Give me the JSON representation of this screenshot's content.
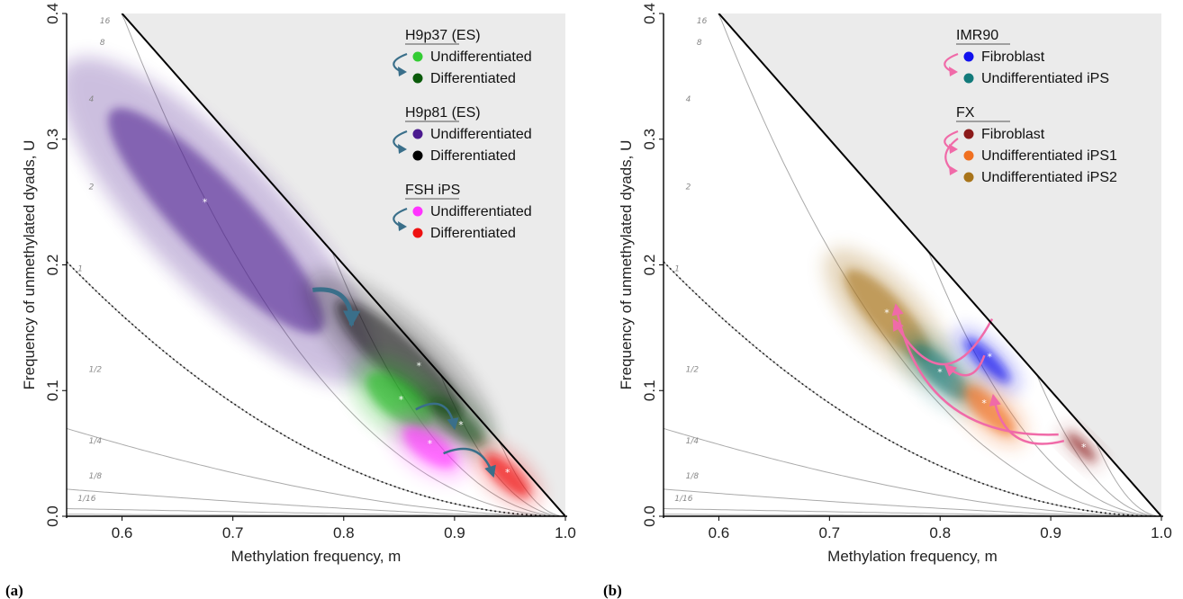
{
  "chart_data": [
    {
      "type": "scatter",
      "panel_label": "(a)",
      "xlabel": "Methylation frequency, m",
      "ylabel": "Frequency of unmethylated dyads, U",
      "xlim": [
        0.55,
        1.0
      ],
      "ylim": [
        0.0,
        0.4
      ],
      "xticks": [
        "0.6",
        "0.7",
        "0.8",
        "0.9",
        "1.0"
      ],
      "yticks": [
        "0.0",
        "0.1",
        "0.2",
        "0.3",
        "0.4"
      ],
      "ratio_curves": [
        "16",
        "8",
        "4",
        "2",
        "1",
        "1/2",
        "1/4",
        "1/8",
        "1/16"
      ],
      "legend_position": "top-right",
      "groups": [
        {
          "header": "H9p37 (ES)",
          "arrow_color": "#3a6f8a",
          "items": [
            {
              "label": "Undifferentiated",
              "color": "#33cc33"
            },
            {
              "label": "Differentiated",
              "color": "#0a5a0a"
            }
          ]
        },
        {
          "header": "H9p81 (ES)",
          "arrow_color": "#3a6f8a",
          "items": [
            {
              "label": "Undifferentiated",
              "color": "#4b1a8f"
            },
            {
              "label": "Differentiated",
              "color": "#000000"
            }
          ]
        },
        {
          "header": "FSH iPS",
          "arrow_color": "#3a6f8a",
          "items": [
            {
              "label": "Undifferentiated",
              "color": "#ff33ff"
            },
            {
              "label": "Differentiated",
              "color": "#ee1111"
            }
          ]
        }
      ],
      "clouds": [
        {
          "color": "#4b1a8f",
          "center": [
            0.675,
            0.25
          ],
          "from": [
            0.55,
            0.36
          ],
          "to": [
            0.82,
            0.11
          ],
          "width": 0.06,
          "opacity": 0.8
        },
        {
          "color": "#111111",
          "center": [
            0.868,
            0.12
          ],
          "from": [
            0.77,
            0.19
          ],
          "to": [
            0.93,
            0.06
          ],
          "width": 0.035,
          "opacity": 0.75
        },
        {
          "color": "#22bb22",
          "center": [
            0.852,
            0.093
          ],
          "from": [
            0.81,
            0.12
          ],
          "to": [
            0.89,
            0.065
          ],
          "width": 0.03,
          "opacity": 0.85
        },
        {
          "color": "#0a4a0a",
          "center": [
            0.906,
            0.073
          ],
          "from": [
            0.87,
            0.1
          ],
          "to": [
            0.935,
            0.05
          ],
          "width": 0.02,
          "opacity": 0.7
        },
        {
          "color": "#ff33ff",
          "center": [
            0.878,
            0.058
          ],
          "from": [
            0.845,
            0.075
          ],
          "to": [
            0.91,
            0.035
          ],
          "width": 0.022,
          "opacity": 0.85
        },
        {
          "color": "#ee1111",
          "center": [
            0.948,
            0.035
          ],
          "from": [
            0.92,
            0.055
          ],
          "to": [
            0.975,
            0.01
          ],
          "width": 0.018,
          "opacity": 0.9
        }
      ],
      "arrows": [
        {
          "from": [
            0.772,
            0.18
          ],
          "to": [
            0.807,
            0.152
          ],
          "width": 5
        },
        {
          "from": [
            0.865,
            0.085
          ],
          "to": [
            0.9,
            0.07
          ],
          "width": 2.5
        },
        {
          "from": [
            0.89,
            0.05
          ],
          "to": [
            0.935,
            0.032
          ],
          "width": 2.5
        }
      ]
    },
    {
      "type": "scatter",
      "panel_label": "(b)",
      "xlabel": "Methylation frequency, m",
      "ylabel": "Frequency of unmethylated dyads, U",
      "xlim": [
        0.55,
        1.0
      ],
      "ylim": [
        0.0,
        0.4
      ],
      "xticks": [
        "0.6",
        "0.7",
        "0.8",
        "0.9",
        "1.0"
      ],
      "yticks": [
        "0.0",
        "0.1",
        "0.2",
        "0.3",
        "0.4"
      ],
      "ratio_curves": [
        "16",
        "8",
        "4",
        "2",
        "1",
        "1/2",
        "1/4",
        "1/8",
        "1/16"
      ],
      "legend_position": "top-right",
      "groups": [
        {
          "header": "IMR90",
          "arrow_color": "#f06aa8",
          "items": [
            {
              "label": "Fibroblast",
              "color": "#1111ee"
            },
            {
              "label": "Undifferentiated iPS",
              "color": "#127a7a"
            }
          ]
        },
        {
          "header": "FX",
          "arrow_color": "#f06aa8",
          "items": [
            {
              "label": "Fibroblast",
              "color": "#8b1a1a"
            },
            {
              "label": "Undifferentiated iPS1",
              "color": "#f07020"
            },
            {
              "label": "Undifferentiated iPS2",
              "color": "#a8741a"
            }
          ]
        }
      ],
      "clouds": [
        {
          "color": "#a8741a",
          "center": [
            0.752,
            0.162
          ],
          "from": [
            0.7,
            0.21
          ],
          "to": [
            0.805,
            0.11
          ],
          "width": 0.03,
          "opacity": 0.85
        },
        {
          "color": "#127a7a",
          "center": [
            0.8,
            0.115
          ],
          "from": [
            0.765,
            0.145
          ],
          "to": [
            0.835,
            0.085
          ],
          "width": 0.022,
          "opacity": 0.85
        },
        {
          "color": "#1111ee",
          "center": [
            0.845,
            0.127
          ],
          "from": [
            0.815,
            0.148
          ],
          "to": [
            0.87,
            0.1
          ],
          "width": 0.014,
          "opacity": 0.9
        },
        {
          "color": "#f07020",
          "center": [
            0.84,
            0.09
          ],
          "from": [
            0.815,
            0.11
          ],
          "to": [
            0.875,
            0.058
          ],
          "width": 0.02,
          "opacity": 0.9
        },
        {
          "color": "#8b1a1a",
          "center": [
            0.93,
            0.055
          ],
          "from": [
            0.91,
            0.07
          ],
          "to": [
            0.945,
            0.04
          ],
          "width": 0.009,
          "opacity": 0.9
        }
      ],
      "arrows": [
        {
          "from": [
            0.847,
            0.157
          ],
          "to": [
            0.758,
            0.156
          ],
          "width": 2.5,
          "bend": 0.06
        },
        {
          "from": [
            0.907,
            0.065
          ],
          "to": [
            0.76,
            0.168
          ],
          "width": 2.5,
          "bend": 0.06
        },
        {
          "from": [
            0.84,
            0.128
          ],
          "to": [
            0.805,
            0.12
          ],
          "width": 2.5,
          "bend": 0.02
        },
        {
          "from": [
            0.912,
            0.06
          ],
          "to": [
            0.848,
            0.096
          ],
          "width": 2.5,
          "bend": 0.03
        }
      ]
    }
  ]
}
